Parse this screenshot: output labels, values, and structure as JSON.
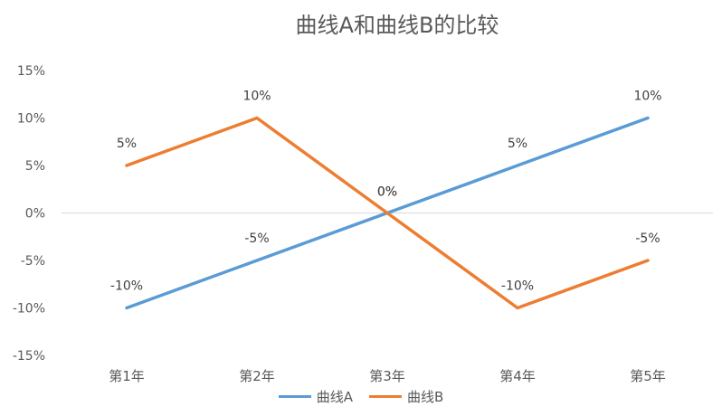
{
  "chart_data": {
    "type": "line",
    "title": "曲线A和曲线B的比较",
    "categories": [
      "第1年",
      "第2年",
      "第3年",
      "第4年",
      "第5年"
    ],
    "y_ticks": [
      "15%",
      "10%",
      "5%",
      "0%",
      "-5%",
      "-10%",
      "-15%"
    ],
    "ylim": [
      -15,
      15
    ],
    "grid": "zero line only",
    "legend_position": "bottom",
    "series": [
      {
        "name": "曲线A",
        "color": "#5B9BD5",
        "values": [
          -10,
          -5,
          0,
          5,
          10
        ],
        "labels": [
          "-10%",
          "-5%",
          "0%",
          "5%",
          "10%"
        ]
      },
      {
        "name": "曲线B",
        "color": "#ED7D31",
        "values": [
          5,
          10,
          0,
          -10,
          -5
        ],
        "labels": [
          "5%",
          "10%",
          "0%",
          "-10%",
          "-5%"
        ]
      }
    ]
  }
}
